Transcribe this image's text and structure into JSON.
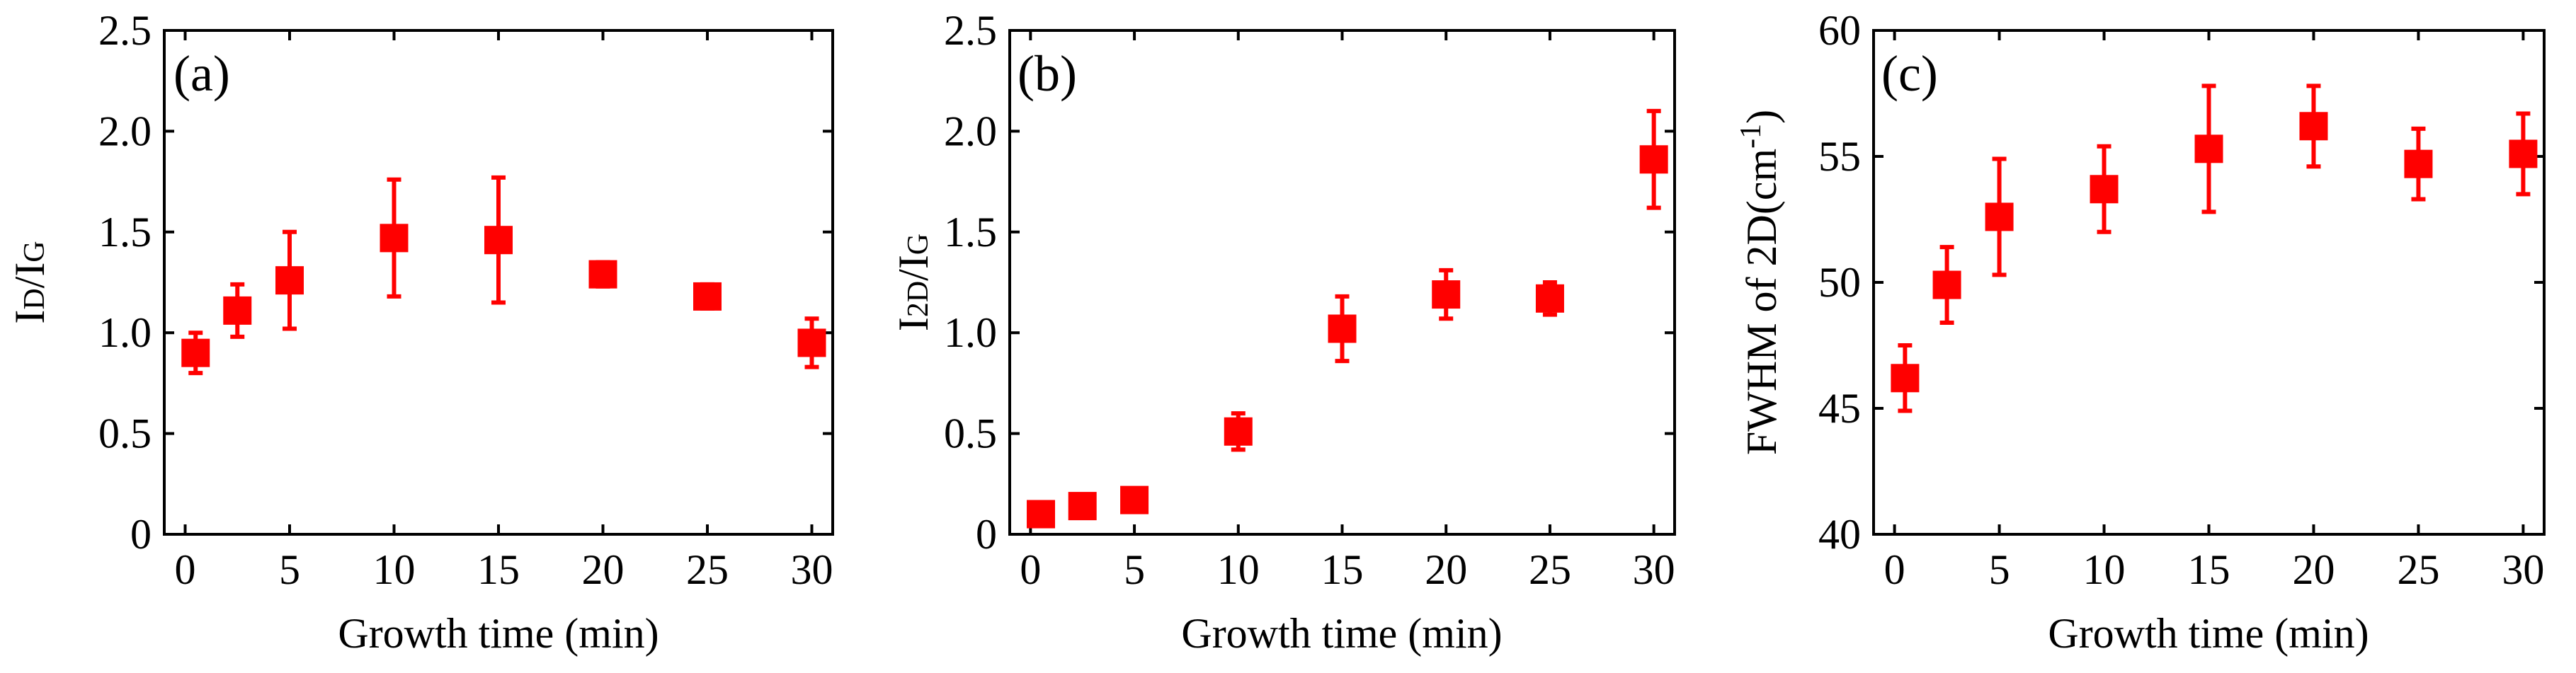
{
  "chart_data": [
    {
      "type": "scatter",
      "panel_label": "(a)",
      "ylabel": {
        "main": "I",
        "sub": "D",
        "sep": "/I",
        "sub2": "G"
      },
      "xlabel": "Growth time (min)",
      "xlim": [
        -1,
        31
      ],
      "ylim": [
        0,
        2.5
      ],
      "xticks": [
        0,
        5,
        10,
        15,
        20,
        25,
        30
      ],
      "xtick_labels": [
        "0",
        "5",
        "10",
        "15",
        "20",
        "25",
        "30"
      ],
      "yticks": [
        0,
        0.5,
        1.0,
        1.5,
        2.0,
        2.5
      ],
      "ytick_labels": [
        "0",
        "0.5",
        "1.0",
        "1.5",
        "2.0",
        "2.5"
      ],
      "series": [
        {
          "name": "ID/IG",
          "color": "#ff0000",
          "x": [
            0.5,
            2.5,
            5,
            10,
            15,
            20,
            25,
            30
          ],
          "y": [
            0.9,
            1.11,
            1.26,
            1.47,
            1.46,
            1.29,
            1.18,
            0.95
          ],
          "err": [
            0.1,
            0.13,
            0.24,
            0.29,
            0.31,
            0.06,
            0.06,
            0.12
          ]
        }
      ]
    },
    {
      "type": "scatter",
      "panel_label": "(b)",
      "ylabel": {
        "main": "I",
        "sub": "2D",
        "sep": "/I",
        "sub2": "G"
      },
      "xlabel": "Growth time (min)",
      "xlim": [
        -1,
        31
      ],
      "ylim": [
        0,
        2.5
      ],
      "xticks": [
        0,
        5,
        10,
        15,
        20,
        25,
        30
      ],
      "xtick_labels": [
        "0",
        "5",
        "10",
        "15",
        "20",
        "25",
        "30"
      ],
      "yticks": [
        0,
        0.5,
        1.0,
        1.5,
        2.0,
        2.5
      ],
      "ytick_labels": [
        "0",
        "0.5",
        "1.0",
        "1.5",
        "2.0",
        "2.5"
      ],
      "series": [
        {
          "name": "I2D/IG",
          "color": "#ff0000",
          "x": [
            0.5,
            2.5,
            5,
            10,
            15,
            20,
            25,
            30
          ],
          "y": [
            0.1,
            0.14,
            0.17,
            0.51,
            1.02,
            1.19,
            1.17,
            1.86
          ],
          "err": [
            0.04,
            0.05,
            0.04,
            0.09,
            0.16,
            0.12,
            0.08,
            0.24
          ]
        }
      ]
    },
    {
      "type": "scatter",
      "panel_label": "(c)",
      "ylabel": {
        "main": "FWHM of 2D(cm",
        "sup": "-1",
        "tail": ")"
      },
      "xlabel": "Growth time (min)",
      "xlim": [
        -1,
        31
      ],
      "ylim": [
        40,
        60
      ],
      "xticks": [
        0,
        5,
        10,
        15,
        20,
        25,
        30
      ],
      "xtick_labels": [
        "0",
        "5",
        "10",
        "15",
        "20",
        "25",
        "30"
      ],
      "yticks": [
        40,
        45,
        50,
        55,
        60
      ],
      "ytick_labels": [
        "40",
        "45",
        "50",
        "55",
        "60"
      ],
      "series": [
        {
          "name": "FWHM of 2D",
          "color": "#ff0000",
          "x": [
            0.5,
            2.5,
            5,
            10,
            15,
            20,
            25,
            30
          ],
          "y": [
            46.2,
            49.9,
            52.6,
            53.7,
            55.3,
            56.2,
            54.7,
            55.1
          ],
          "err": [
            1.3,
            1.5,
            2.3,
            1.7,
            2.5,
            1.6,
            1.4,
            1.6
          ]
        }
      ]
    }
  ]
}
